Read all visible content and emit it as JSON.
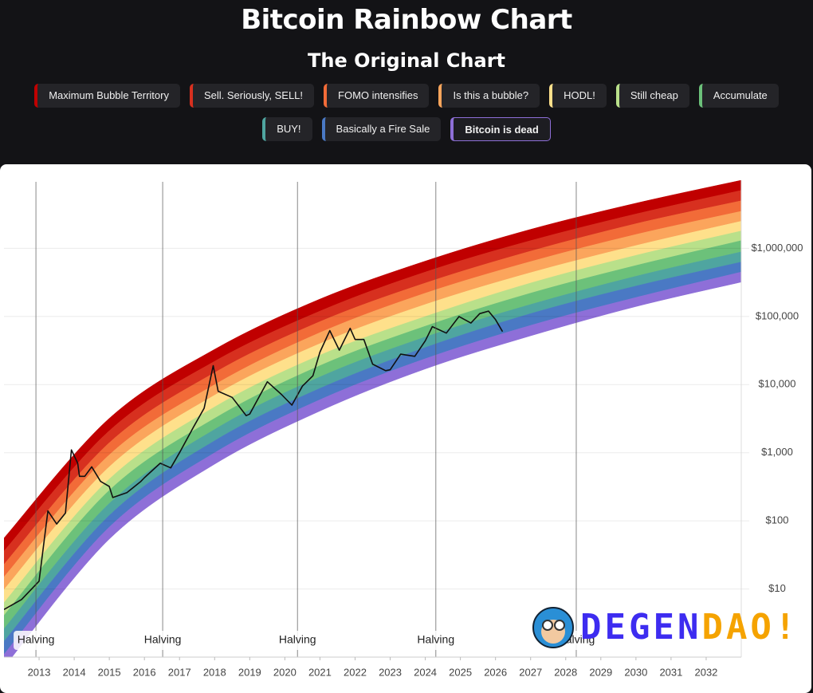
{
  "chart_data": {
    "type": "line",
    "title": "Bitcoin Rainbow Chart",
    "subtitle": "The Original Chart",
    "log_y": true,
    "grid": true,
    "xlim": [
      2012,
      2033
    ],
    "ylim": [
      1,
      10000000
    ],
    "xticks": [
      2013,
      2014,
      2015,
      2016,
      2017,
      2018,
      2019,
      2020,
      2021,
      2022,
      2023,
      2024,
      2025,
      2026,
      2027,
      2028,
      2029,
      2030,
      2031,
      2032
    ],
    "yticks": [
      {
        "value": 10,
        "label": "$10"
      },
      {
        "value": 100,
        "label": "$100"
      },
      {
        "value": 1000,
        "label": "$1,000"
      },
      {
        "value": 10000,
        "label": "$10,000"
      },
      {
        "value": 100000,
        "label": "$100,000"
      },
      {
        "value": 1000000,
        "label": "$1,000,000"
      }
    ],
    "band_x": [
      2012,
      2015,
      2018,
      2021,
      2024,
      2027,
      2030,
      2033
    ],
    "series": [
      {
        "name": "Maximum Bubble Territory",
        "color": "#c00000",
        "values": [
          56,
          3200,
          33000,
          180000,
          650000,
          1900000,
          4600000,
          10000000
        ]
      },
      {
        "name": "Sell. Seriously, SELL!",
        "color": "#d7301f",
        "values": [
          36,
          2100,
          22000,
          120000,
          450000,
          1300000,
          3200000,
          7100000
        ]
      },
      {
        "name": "FOMO intensifies",
        "color": "#f26b38",
        "values": [
          23,
          1400,
          15000,
          84000,
          310000,
          910000,
          2300000,
          5000000
        ]
      },
      {
        "name": "Is this a bubble?",
        "color": "#fba55c",
        "values": [
          15,
          930,
          10000,
          58000,
          220000,
          640000,
          1600000,
          3500000
        ]
      },
      {
        "name": "HODL!",
        "color": "#fee08b",
        "values": [
          9.8,
          620,
          7000,
          40000,
          150000,
          440000,
          1100000,
          2500000
        ]
      },
      {
        "name": "Still cheap",
        "color": "#b9e08a",
        "values": [
          6.3,
          410,
          4700,
          27000,
          100000,
          310000,
          790000,
          1800000
        ]
      },
      {
        "name": "Accumulate",
        "color": "#6cc17a",
        "values": [
          4.1,
          280,
          3200,
          19000,
          72000,
          220000,
          560000,
          1300000
        ]
      },
      {
        "name": "BUY!",
        "color": "#4fa5a0",
        "values": [
          2.6,
          180,
          2200,
          13000,
          50000,
          150000,
          390000,
          890000
        ]
      },
      {
        "name": "Basically a Fire Sale",
        "color": "#4a79c4",
        "values": [
          1.7,
          120,
          1500,
          8800,
          35000,
          110000,
          280000,
          630000
        ]
      },
      {
        "name": "Bitcoin is dead",
        "color": "#8e6fd8",
        "active": true,
        "values": [
          1.1,
          81,
          1000,
          6000,
          24000,
          74000,
          190000,
          450000
        ],
        "lower_values": [
          0.71,
          54,
          680,
          4100,
          17000,
          52000,
          140000,
          320000
        ]
      }
    ],
    "price": {
      "color": "#111111",
      "x": [
        2012.0,
        2012.5,
        2013.0,
        2013.25,
        2013.5,
        2013.75,
        2013.92,
        2014.1,
        2014.15,
        2014.3,
        2014.5,
        2014.75,
        2015.0,
        2015.1,
        2015.5,
        2015.9,
        2016.0,
        2016.45,
        2016.75,
        2017.0,
        2017.4,
        2017.7,
        2017.96,
        2018.1,
        2018.5,
        2018.9,
        2019.0,
        2019.5,
        2019.9,
        2020.2,
        2020.5,
        2020.8,
        2021.0,
        2021.28,
        2021.55,
        2021.86,
        2022.0,
        2022.25,
        2022.5,
        2022.87,
        2023.0,
        2023.3,
        2023.7,
        2024.0,
        2024.2,
        2024.6,
        2024.96,
        2025.3,
        2025.55,
        2025.8,
        2026.0,
        2026.2
      ],
      "values": [
        5,
        7,
        13,
        140,
        90,
        130,
        1100,
        700,
        450,
        450,
        620,
        380,
        320,
        220,
        260,
        380,
        430,
        700,
        600,
        1000,
        2400,
        4500,
        19000,
        8000,
        6500,
        3500,
        3700,
        11000,
        7200,
        5000,
        9500,
        13500,
        30000,
        62000,
        32000,
        67000,
        46000,
        46000,
        20000,
        16000,
        16500,
        28000,
        26000,
        44000,
        71000,
        57000,
        100000,
        80000,
        110000,
        120000,
        90000,
        60000
      ]
    },
    "events": [
      {
        "x": 2012.91,
        "label": "Halving"
      },
      {
        "x": 2016.52,
        "label": "Halving"
      },
      {
        "x": 2020.36,
        "label": "Halving"
      },
      {
        "x": 2024.3,
        "label": "Halving"
      },
      {
        "x": 2028.3,
        "label": "Halving"
      }
    ],
    "watermark": {
      "parts": [
        "DEGEN",
        "DAO!"
      ],
      "colors": [
        "#3d2cf0",
        "#f5a300"
      ]
    }
  }
}
